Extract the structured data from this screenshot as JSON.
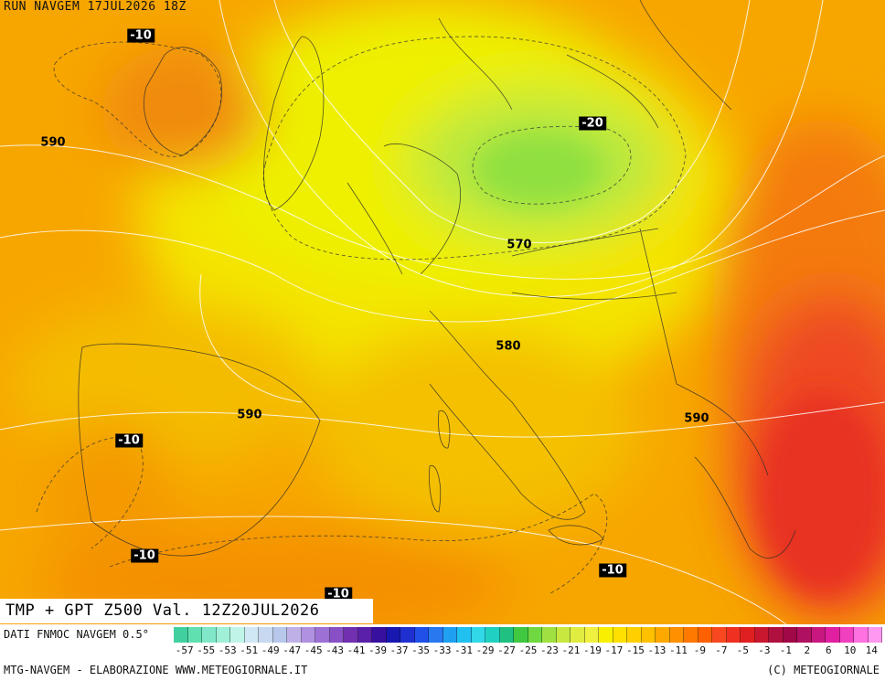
{
  "header": {
    "run_title": "RUN NAVGEM 17JUL2026 18Z"
  },
  "map": {
    "field_label": "TMP + GPT Z500 Val. 12Z20JUL2026",
    "geopotential_labels": [
      "590",
      "570",
      "580",
      "590",
      "590"
    ],
    "temperature_labels": [
      "-10",
      "-20",
      "-10",
      "-10",
      "-10",
      "-10"
    ]
  },
  "legend": {
    "data_source": "DATI FNMOC NAVGEM 0.5°",
    "tick_labels": [
      "-57",
      "-55",
      "-53",
      "-51",
      "-49",
      "-47",
      "-45",
      "-43",
      "-41",
      "-39",
      "-37",
      "-35",
      "-33",
      "-31",
      "-29",
      "-27",
      "-25",
      "-23",
      "-21",
      "-19",
      "-17",
      "-15",
      "-13",
      "-11",
      "-9",
      "-7",
      "-5",
      "-3",
      "-1",
      "2",
      "6",
      "10",
      "14"
    ],
    "colors": [
      "#40d0a0",
      "#60e0b0",
      "#80e8c8",
      "#a0f0d8",
      "#c0f4e8",
      "#d0e8f4",
      "#c8d8f0",
      "#b8c8ec",
      "#c0b0e8",
      "#b090e0",
      "#9c70d4",
      "#8850c4",
      "#7030b0",
      "#5a20a8",
      "#3810a0",
      "#1818b0",
      "#2030d0",
      "#2050e8",
      "#2878f0",
      "#20a0f0",
      "#20c0f0",
      "#30d8e8",
      "#20d0c0",
      "#20c080",
      "#40c840",
      "#70d840",
      "#a0e040",
      "#c8e840",
      "#e0ec40",
      "#f0f040",
      "#f8f000",
      "#ffe000",
      "#ffd000",
      "#ffc000",
      "#ffa800",
      "#ff9000",
      "#ff7800",
      "#ff6000",
      "#f84820",
      "#f03020",
      "#e02020",
      "#c81830",
      "#b01040",
      "#a00848",
      "#b01060",
      "#c81880",
      "#e020a0",
      "#f040c0",
      "#ff70e0",
      "#ff98f0"
    ]
  },
  "footer": {
    "left": "MTG-NAVGEM - ELABORAZIONE WWW.METEOGIORNALE.IT",
    "right": "(C) METEOGIORNALE"
  }
}
